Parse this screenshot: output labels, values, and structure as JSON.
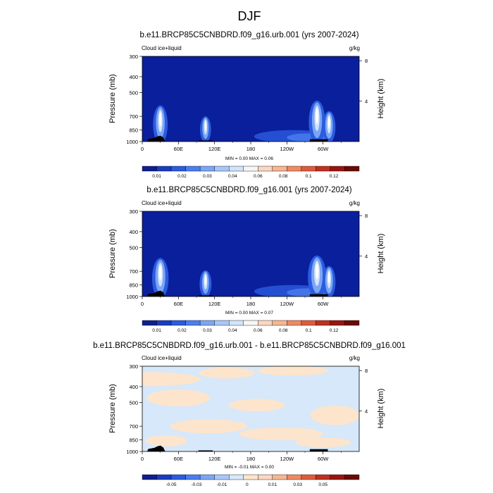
{
  "figure": {
    "title": "DJF"
  },
  "chart_data": [
    {
      "type": "heatmap",
      "title": "b.e11.BRCP85C5CNBDRD.f09_g16.urb.001 (yrs 2007-2024)",
      "variable": "Cloud ice+liquid",
      "units": "g/kg",
      "ylabel": "Pressure (mb)",
      "y2label": "Height (km)",
      "x_ticks": [
        "0",
        "60E",
        "120E",
        "180",
        "120W",
        "60W"
      ],
      "x_tick_values": [
        0,
        60,
        120,
        180,
        240,
        300
      ],
      "xlim": [
        0,
        360
      ],
      "y_ticks": [
        "300",
        "400",
        "500",
        "700",
        "850",
        "1000"
      ],
      "y_tick_values": [
        300,
        400,
        500,
        700,
        850,
        1000
      ],
      "ylim": [
        1000,
        300
      ],
      "y_scale": "log",
      "y2_ticks": [
        "8",
        "4"
      ],
      "y2_tick_values": [
        8,
        4
      ],
      "stats": "MIN =   0.00  MAX =   0.06",
      "colorbar_labels": [
        "0.01",
        "0.02",
        "0.03",
        "0.04",
        "0.06",
        "0.08",
        "0.1",
        "0.12"
      ],
      "features": [
        {
          "lon": 30,
          "p_top": 600,
          "peak": 0.05
        },
        {
          "lon": 105,
          "p_top": 700,
          "peak": 0.03
        },
        {
          "lon": 290,
          "p_top": 560,
          "peak": 0.06
        },
        {
          "lon": 310,
          "p_top": 650,
          "peak": 0.04
        }
      ]
    },
    {
      "type": "heatmap",
      "title": "b.e11.BRCP85C5CNBDRD.f09_g16.001 (yrs 2007-2024)",
      "variable": "Cloud ice+liquid",
      "units": "g/kg",
      "ylabel": "Pressure (mb)",
      "y2label": "Height (km)",
      "x_ticks": [
        "0",
        "60E",
        "120E",
        "180",
        "120W",
        "60W"
      ],
      "x_tick_values": [
        0,
        60,
        120,
        180,
        240,
        300
      ],
      "xlim": [
        0,
        360
      ],
      "y_ticks": [
        "300",
        "400",
        "500",
        "700",
        "850",
        "1000"
      ],
      "y_tick_values": [
        300,
        400,
        500,
        700,
        850,
        1000
      ],
      "ylim": [
        1000,
        300
      ],
      "y_scale": "log",
      "y2_ticks": [
        "8",
        "4"
      ],
      "y2_tick_values": [
        8,
        4
      ],
      "stats": "MIN =   0.00  MAX =   0.07",
      "colorbar_labels": [
        "0.01",
        "0.02",
        "0.03",
        "0.04",
        "0.06",
        "0.08",
        "0.1",
        "0.12"
      ],
      "features": [
        {
          "lon": 30,
          "p_top": 580,
          "peak": 0.06
        },
        {
          "lon": 105,
          "p_top": 690,
          "peak": 0.035
        },
        {
          "lon": 290,
          "p_top": 560,
          "peak": 0.07
        },
        {
          "lon": 310,
          "p_top": 650,
          "peak": 0.04
        }
      ]
    },
    {
      "type": "heatmap",
      "title": "b.e11.BRCP85C5CNBDRD.f09_g16.urb.001 - b.e11.BRCP85C5CNBDRD.f09_g16.001",
      "variable": "Cloud ice+liquid",
      "units": "g/kg",
      "ylabel": "Pressure (mb)",
      "y2label": "Height (km)",
      "x_ticks": [
        "0",
        "60E",
        "120E",
        "180",
        "120W",
        "60W"
      ],
      "x_tick_values": [
        0,
        60,
        120,
        180,
        240,
        300
      ],
      "xlim": [
        0,
        360
      ],
      "y_ticks": [
        "300",
        "400",
        "500",
        "700",
        "850",
        "1000"
      ],
      "y_tick_values": [
        300,
        400,
        500,
        700,
        850,
        1000
      ],
      "ylim": [
        1000,
        300
      ],
      "y_scale": "log",
      "y2_ticks": [
        "8",
        "4"
      ],
      "y2_tick_values": [
        8,
        4
      ],
      "stats": "MIN =  -0.01  MAX =   0.00",
      "colorbar_labels": [
        "-0.05",
        "-0.03",
        "-0.01",
        "0",
        "0.01",
        "0.03",
        "0.05"
      ],
      "features": []
    }
  ],
  "colors": {
    "background_panel": "#0a1f9c",
    "colorbar_abs": [
      "#0f1f8f",
      "#1a3cc4",
      "#2b5be0",
      "#4a7ef0",
      "#7aa6f5",
      "#a8c6f8",
      "#d3e3fb",
      "#f6f6f6",
      "#fbd6c0",
      "#f7b592",
      "#f08a63",
      "#df5a3c",
      "#c1301f",
      "#9a1410",
      "#6b0a05"
    ],
    "colorbar_diff": [
      "#0f1f8f",
      "#1a3cc4",
      "#2b5be0",
      "#4a7ef0",
      "#7aa6f5",
      "#a8c6f8",
      "#d6e8fa",
      "#fde4cc",
      "#fbd6c0",
      "#f7b592",
      "#f08a63",
      "#df5a3c",
      "#c1301f",
      "#9a1410",
      "#6b0a05"
    ],
    "diff_neg": "#d6e8fa",
    "diff_pos": "#fde4cc",
    "topo": "#000000"
  }
}
